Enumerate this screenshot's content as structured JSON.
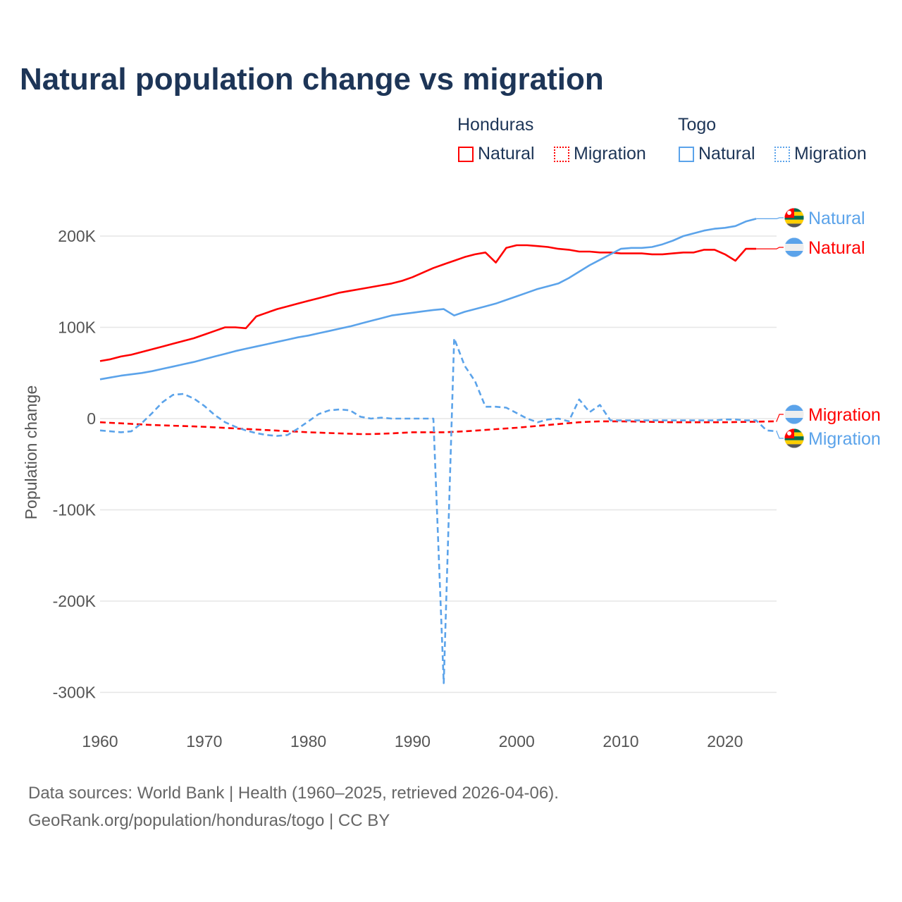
{
  "chart_data": {
    "type": "line",
    "title": "Natural population change vs migration",
    "xlabel": "",
    "ylabel": "Population change",
    "xlim": [
      1960,
      2025
    ],
    "ylim": [
      -300000,
      220000
    ],
    "x_ticks": [
      1960,
      1970,
      1980,
      1990,
      2000,
      2010,
      2020
    ],
    "x_tick_labels": [
      "1960",
      "1970",
      "1980",
      "1990",
      "2000",
      "2010",
      "2020"
    ],
    "y_ticks": [
      200000,
      100000,
      0,
      -100000,
      -200000,
      -300000
    ],
    "y_tick_labels": [
      "200K",
      "100K",
      "0",
      "-100K",
      "-200K",
      "-300K"
    ],
    "grid": true,
    "legend": {
      "placement": "top-right",
      "groups": [
        {
          "country": "Honduras",
          "items": [
            "Natural",
            "Migration"
          ]
        },
        {
          "country": "Togo",
          "items": [
            "Natural",
            "Migration"
          ]
        }
      ]
    },
    "series": [
      {
        "name": "Honduras Natural",
        "label": "Natural",
        "color": "#ff0000",
        "dash": false,
        "x_start": 1960,
        "values": [
          63000,
          65000,
          68000,
          70000,
          73000,
          76000,
          79000,
          82000,
          85000,
          88000,
          92000,
          96000,
          100000,
          100000,
          99000,
          112000,
          116000,
          120000,
          123000,
          126000,
          129000,
          132000,
          135000,
          138000,
          140000,
          142000,
          144000,
          146000,
          148000,
          151000,
          155000,
          160000,
          165000,
          169000,
          173000,
          177000,
          180000,
          182000,
          171000,
          187000,
          190000,
          190000,
          189000,
          188000,
          186000,
          185000,
          183000,
          183000,
          182000,
          182000,
          181000,
          181000,
          181000,
          180000,
          180000,
          181000,
          182000,
          182000,
          185000,
          185000,
          180000,
          173000,
          186000,
          186000
        ]
      },
      {
        "name": "Honduras Migration",
        "label": "Migration",
        "color": "#ff0000",
        "dash": true,
        "x_start": 1960,
        "values": [
          -4000,
          -4600,
          -5200,
          -5800,
          -6400,
          -7000,
          -7400,
          -7800,
          -8200,
          -8600,
          -9000,
          -9600,
          -10200,
          -10800,
          -11400,
          -12000,
          -12600,
          -13200,
          -13800,
          -14400,
          -15000,
          -15400,
          -15800,
          -16200,
          -16600,
          -17000,
          -17000,
          -16600,
          -16200,
          -15600,
          -15000,
          -15000,
          -15000,
          -15000,
          -14500,
          -14000,
          -13200,
          -12400,
          -11600,
          -10800,
          -10000,
          -9000,
          -8000,
          -7000,
          -6000,
          -5000,
          -4000,
          -3500,
          -3000,
          -3000,
          -3000,
          -3200,
          -3400,
          -3600,
          -3800,
          -4000,
          -4000,
          -4000,
          -4000,
          -4000,
          -4000,
          -3800,
          -3600,
          -3400,
          -3200,
          -3000
        ]
      },
      {
        "name": "Togo Natural",
        "label": "Natural",
        "color": "#5ba3ea",
        "dash": false,
        "x_start": 1960,
        "values": [
          43000,
          45000,
          47000,
          48500,
          50000,
          52000,
          54500,
          57000,
          59500,
          62000,
          65000,
          68000,
          71000,
          74000,
          76500,
          79000,
          81500,
          84000,
          86500,
          89000,
          91000,
          93500,
          96000,
          98500,
          101000,
          104000,
          107000,
          110000,
          113000,
          114500,
          116000,
          117500,
          119000,
          120000,
          113000,
          117000,
          120000,
          123000,
          126000,
          130000,
          134000,
          138000,
          142000,
          145000,
          148000,
          154000,
          161000,
          168000,
          174000,
          180000,
          186000,
          187000,
          187000,
          188000,
          191000,
          195000,
          200000,
          203000,
          206000,
          208000,
          209000,
          211000,
          216000,
          219000
        ]
      },
      {
        "name": "Togo Migration",
        "label": "Migration",
        "color": "#5ba3ea",
        "dash": true,
        "x_start": 1960,
        "values": [
          -13000,
          -14000,
          -15000,
          -14000,
          -5000,
          6000,
          18000,
          26000,
          27000,
          22000,
          14000,
          4000,
          -4000,
          -9000,
          -13000,
          -16000,
          -18000,
          -19000,
          -18000,
          -11000,
          -3000,
          5000,
          9000,
          10000,
          9000,
          2000,
          0,
          1000,
          0,
          0,
          0,
          0,
          0,
          -290000,
          88000,
          58000,
          41000,
          13000,
          13000,
          12000,
          6000,
          0,
          -4000,
          -1000,
          0,
          -3000,
          21000,
          7000,
          15000,
          -2000,
          -2000,
          -2000,
          -2000,
          -2000,
          -2000,
          -2000,
          -2000,
          -2000,
          -2000,
          -2000,
          -1000,
          -1000,
          -2000,
          -2000,
          -13000,
          -14000
        ]
      }
    ]
  },
  "legend": {
    "honduras": "Honduras",
    "togo": "Togo",
    "natural": "Natural",
    "migration": "Migration"
  },
  "end_labels": {
    "togo_natural": "Natural",
    "honduras_natural": "Natural",
    "honduras_migration": "Migration",
    "togo_migration": "Migration"
  },
  "footer": {
    "line1": "Data sources: World Bank | Health (1960–2025, retrieved 2026-04-06).",
    "line2": "GeoRank.org/population/honduras/togo | CC BY"
  }
}
